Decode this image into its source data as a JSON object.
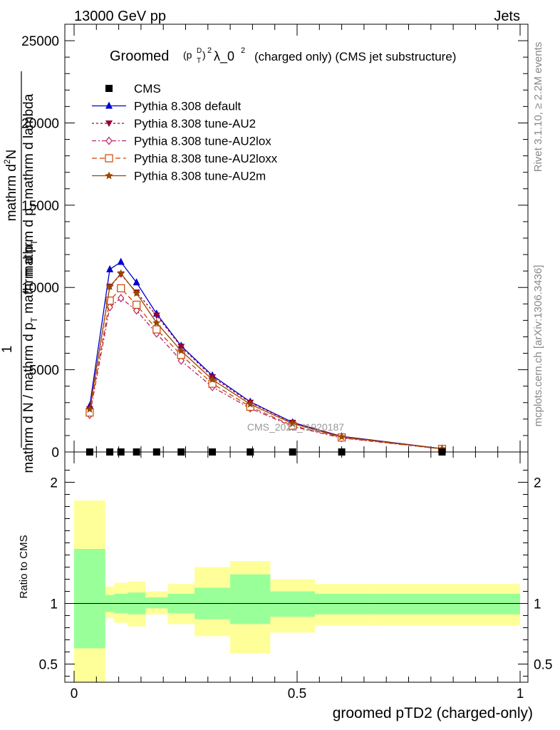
{
  "header": {
    "left": "13000 GeV pp",
    "right": "Jets"
  },
  "side_labels": {
    "rivet": "Rivet 3.1.10, ≥ 2.2M events",
    "mcplots": "mcplots.cern.ch [arXiv:1306.3436]"
  },
  "watermark": "CMS_2021_I1920187",
  "chart_data": [
    {
      "type": "line",
      "title_main": "Groomed",
      "title_formula": "(p",
      "title_sub": "T",
      "title_sup": "D",
      "title_close": ")",
      "title_sq": "2",
      "title_lambda": "λ_0",
      "title_lambda_sq": "2",
      "title_rest": "(charged only) (CMS jet substructure)",
      "ylabel_top": "mathrm d²N",
      "ylabel_bottom": "mathrm d p_T mathrm d p_T mathrm d lambda",
      "ylabel_prefix": "1",
      "ylabel_frac_bottom": "mathrm d N / mathrm d p_T",
      "ylabel_parts": {
        "num1": "mathrm d",
        "num1_sup": "2",
        "num1_tail": "N",
        "den1": "mathrm d p",
        "den1_sub": "T",
        "den1_tail": "mathrm d lambda",
        "one": "1",
        "den2": "mathrm d N / mathrm d p",
        "den2_sub": "T",
        "den2_mid": "mathrm d p",
        "den2_sub2": "T"
      },
      "xlim": [
        0,
        1
      ],
      "ylim": [
        0,
        26000
      ],
      "yticks": [
        0,
        5000,
        10000,
        15000,
        20000,
        25000
      ],
      "ytick_labels": [
        "0",
        "5000",
        "10000",
        "15000",
        "20000",
        "25000"
      ],
      "x": [
        0.035,
        0.08,
        0.105,
        0.14,
        0.185,
        0.24,
        0.31,
        0.395,
        0.49,
        0.6,
        0.825
      ],
      "series": [
        {
          "name": "CMS",
          "color": "#000000",
          "marker": "square",
          "dash": "none",
          "values": [
            0,
            0,
            0,
            0,
            0,
            0,
            0,
            0,
            0,
            0,
            0
          ]
        },
        {
          "name": "Pythia 8.308 default",
          "color": "#0000cc",
          "marker": "triangle-up",
          "dash": "solid",
          "values": [
            2800,
            11100,
            11550,
            10300,
            8400,
            6450,
            4650,
            3050,
            1800,
            950,
            200
          ]
        },
        {
          "name": "Pythia 8.308 tune-AU2",
          "color": "#990033",
          "marker": "triangle-down",
          "dash": "dot",
          "values": [
            2600,
            10050,
            10800,
            9700,
            8300,
            6400,
            4550,
            3000,
            1780,
            950,
            200
          ]
        },
        {
          "name": "Pythia 8.308 tune-AU2lox",
          "color": "#bb2266",
          "marker": "diamond-open",
          "dash": "dashdot",
          "values": [
            2250,
            8800,
            9350,
            8600,
            7200,
            5550,
            3950,
            2650,
            1550,
            850,
            180
          ]
        },
        {
          "name": "Pythia 8.308 tune-AU2loxx",
          "color": "#cc4400",
          "marker": "square-open",
          "dash": "dash",
          "values": [
            2400,
            9200,
            9950,
            8950,
            7450,
            5900,
            4150,
            2750,
            1600,
            880,
            185
          ]
        },
        {
          "name": "Pythia 8.308 tune-AU2m",
          "color": "#994400",
          "marker": "star",
          "dash": "solid",
          "values": [
            2600,
            10050,
            10850,
            9650,
            7850,
            6150,
            4400,
            2900,
            1720,
            920,
            195
          ]
        }
      ]
    },
    {
      "type": "area",
      "ylabel": "Ratio to CMS",
      "xlabel": "groomed pTD2 (charged-only)",
      "xlim": [
        0,
        1
      ],
      "ylim": [
        0.35,
        2.25
      ],
      "yticks": [
        0.5,
        1,
        2
      ],
      "ytick_labels": [
        "0.5",
        "1",
        "2"
      ],
      "xticks": [
        0,
        0.5,
        1
      ],
      "xtick_labels": [
        "0",
        "0.5",
        "1"
      ],
      "reference": 1,
      "bins": [
        {
          "x0": 0.0,
          "x1": 0.07,
          "yellow": [
            0.35,
            1.85
          ],
          "green": [
            0.63,
            1.45
          ]
        },
        {
          "x0": 0.07,
          "x1": 0.09,
          "yellow": [
            0.88,
            1.14
          ],
          "green": [
            0.93,
            1.07
          ]
        },
        {
          "x0": 0.09,
          "x1": 0.12,
          "yellow": [
            0.84,
            1.17
          ],
          "green": [
            0.92,
            1.08
          ]
        },
        {
          "x0": 0.12,
          "x1": 0.16,
          "yellow": [
            0.81,
            1.18
          ],
          "green": [
            0.91,
            1.09
          ]
        },
        {
          "x0": 0.16,
          "x1": 0.21,
          "yellow": [
            0.91,
            1.1
          ],
          "green": [
            0.96,
            1.05
          ]
        },
        {
          "x0": 0.21,
          "x1": 0.27,
          "yellow": [
            0.83,
            1.16
          ],
          "green": [
            0.92,
            1.08
          ]
        },
        {
          "x0": 0.27,
          "x1": 0.35,
          "yellow": [
            0.73,
            1.3
          ],
          "green": [
            0.87,
            1.13
          ]
        },
        {
          "x0": 0.35,
          "x1": 0.44,
          "yellow": [
            0.59,
            1.35
          ],
          "green": [
            0.83,
            1.24
          ]
        },
        {
          "x0": 0.44,
          "x1": 0.54,
          "yellow": [
            0.76,
            1.2
          ],
          "green": [
            0.89,
            1.1
          ]
        },
        {
          "x0": 0.54,
          "x1": 0.67,
          "yellow": [
            0.82,
            1.16
          ],
          "green": [
            0.91,
            1.08
          ]
        },
        {
          "x0": 0.67,
          "x1": 1.0,
          "yellow": [
            0.82,
            1.16
          ],
          "green": [
            0.91,
            1.08
          ]
        }
      ]
    }
  ]
}
